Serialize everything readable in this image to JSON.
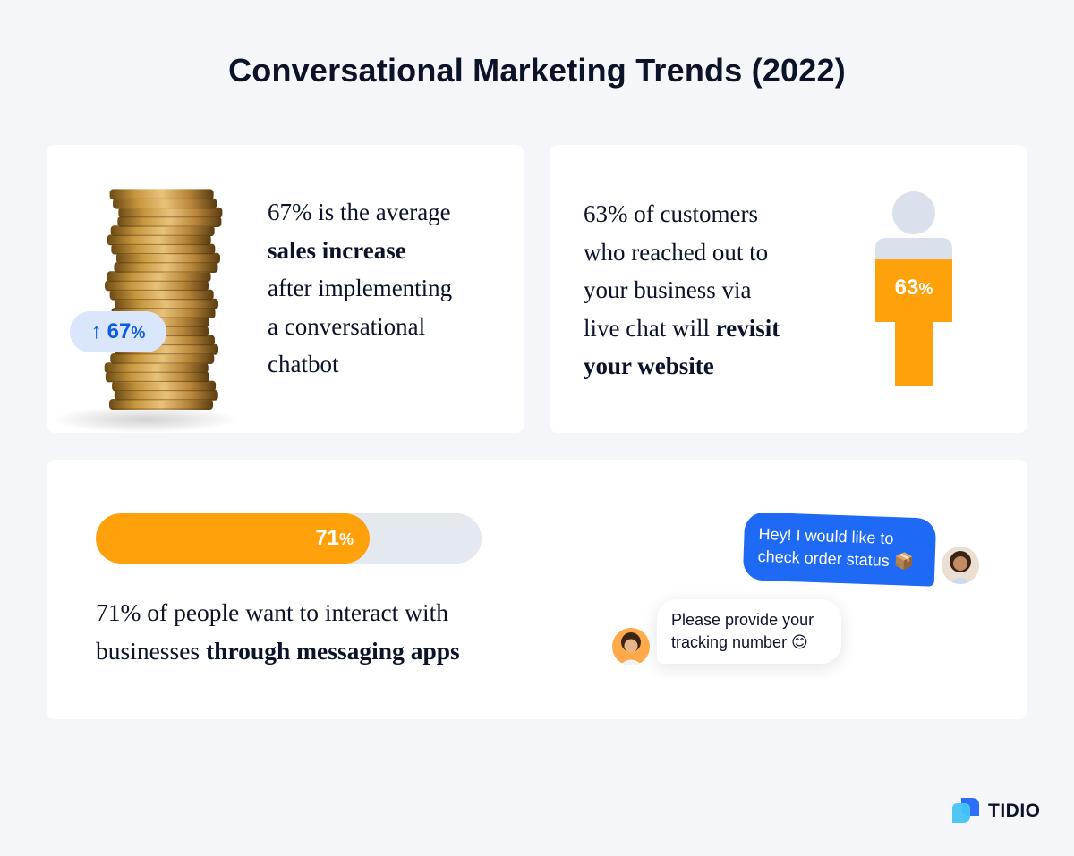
{
  "title": "Conversational Marketing Trends (2022)",
  "card_sales": {
    "badge_arrow": "↑",
    "badge_value": "67",
    "badge_unit": "%",
    "text_line1": "67% is the average",
    "text_bold": "sales increase",
    "text_line3": "after implementing",
    "text_line4": "a conversational",
    "text_line5": "chatbot"
  },
  "card_revisit": {
    "text_line1": "63% of customers",
    "text_line2": "who reached out to",
    "text_line3": "your business via",
    "text_line4_plain": "live chat will ",
    "text_line4_bold": "revisit",
    "text_line5_bold": "your website",
    "figure_value": "63",
    "figure_unit": "%",
    "figure_fraction": 0.63
  },
  "card_messaging": {
    "progress_value": "71",
    "progress_unit": "%",
    "progress_fraction": 0.71,
    "text_line1": "71% of people want to interact with",
    "text_line2_plain": "businesses ",
    "text_line2_bold": "through messaging apps",
    "chat_user_message": "Hey! I would like to check order status 📦",
    "chat_bot_message": "Please provide your tracking number 😊"
  },
  "brand": {
    "name": "TIDIO",
    "accent": "#1f6af5",
    "orange": "#ffa10a"
  }
}
